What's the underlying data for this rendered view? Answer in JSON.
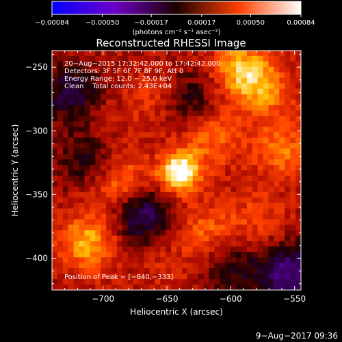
{
  "chart_data": {
    "type": "heatmap",
    "title": "Reconstructed RHESSI Image",
    "xlabel": "Heliocentric X (arcsec)",
    "ylabel": "Heliocentric Y (arcsec)",
    "xlim": [
      -740,
      -545
    ],
    "ylim": [
      -425,
      -237
    ],
    "x_ticks": [
      -700,
      -650,
      -600,
      -550
    ],
    "y_ticks": [
      -250,
      -300,
      -350,
      -400
    ],
    "x_tick_labels": [
      "−700",
      "−650",
      "−600",
      "−550"
    ],
    "y_tick_labels": [
      "−250",
      "−300",
      "−350",
      "−400"
    ],
    "colorbar": {
      "min": -0.00084,
      "max": 0.00084,
      "ticks": [
        -0.00084,
        -0.0005,
        -0.00017,
        0.00017,
        0.0005,
        0.00084
      ],
      "tick_labels": [
        "−0.00084",
        "−0.00050",
        "−0.00017",
        "0.00017",
        "0.00050",
        "0.00084"
      ],
      "units": "(photons cm⁻² s⁻¹ asec⁻²)"
    },
    "info_lines": [
      "20−Aug−2015 17:32:42.000 to 17:42:42.000",
      "Detectors: 3F 5F 6F 7F 8F 9F, Att 0",
      "Energy Range: 12.0 − 25.0 keV",
      "Clean    Total counts: 2.43E+04"
    ],
    "peak_label": "Position of Peak = [−640,−333]",
    "peak_position": [
      -640,
      -333
    ],
    "sources": [
      {
        "x": -640,
        "y": -333,
        "intensity": 0.00084
      },
      {
        "x": -592,
        "y": -252,
        "intensity": 0.00055
      },
      {
        "x": -712,
        "y": -388,
        "intensity": 0.00052
      },
      {
        "x": -685,
        "y": -342,
        "intensity": 0.00045
      },
      {
        "x": -615,
        "y": -305,
        "intensity": 0.0004
      },
      {
        "x": -560,
        "y": -315,
        "intensity": 0.0004
      },
      {
        "x": -572,
        "y": -270,
        "intensity": 0.0004
      },
      {
        "x": -620,
        "y": -380,
        "intensity": 0.00035
      },
      {
        "x": -580,
        "y": -370,
        "intensity": 0.0003
      },
      {
        "x": -660,
        "y": -275,
        "intensity": 0.00025
      },
      {
        "x": -700,
        "y": -300,
        "intensity": 0.0002
      },
      {
        "x": -650,
        "y": -410,
        "intensity": 0.0002
      },
      {
        "x": -670,
        "y": -365,
        "intensity": -0.00045
      },
      {
        "x": -555,
        "y": -412,
        "intensity": -0.0005
      },
      {
        "x": -725,
        "y": -270,
        "intensity": -0.00035
      },
      {
        "x": -712,
        "y": -322,
        "intensity": -0.00028
      },
      {
        "x": -630,
        "y": -275,
        "intensity": -0.00025
      },
      {
        "x": -600,
        "y": -408,
        "intensity": -0.00025
      }
    ]
  },
  "footer": {
    "timestamp": "9−Aug−2017 09:36"
  }
}
